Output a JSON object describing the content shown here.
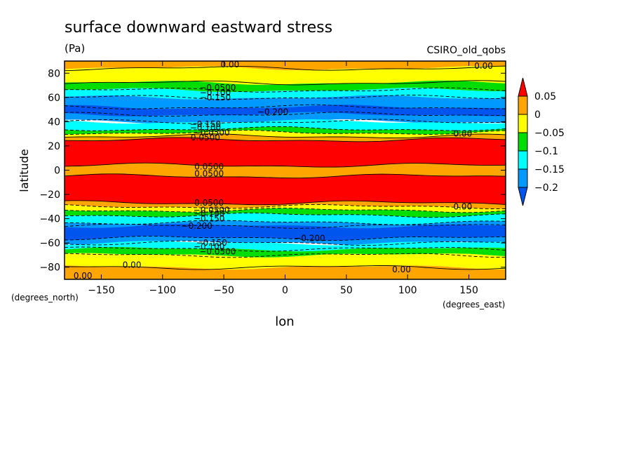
{
  "chart_data": {
    "type": "heatmap",
    "title": "surface downward eastward stress",
    "units": "(Pa)",
    "dataset": "CSIRO_old_qobs",
    "xlabel": "lon",
    "ylabel": "latitude",
    "x_units": "(degrees_east)",
    "y_units": "(degrees_north)",
    "xlim": [
      -180,
      180
    ],
    "ylim": [
      -90,
      90
    ],
    "x_ticks": [
      -150,
      -100,
      -50,
      0,
      50,
      100,
      150
    ],
    "y_ticks": [
      -80,
      -60,
      -40,
      -20,
      0,
      20,
      40,
      60,
      80
    ],
    "colorbar": {
      "levels": [
        -0.2,
        -0.15,
        -0.1,
        -0.05,
        0,
        0.05
      ],
      "tick_labels": [
        "0.05",
        "0",
        "−0.05",
        "−0.1",
        "−0.15",
        "−0.2"
      ],
      "colors": {
        "above_0.05": "#ff0000",
        "0_to_0.05": "#ffa500",
        "-0.05_to_0": "#ffff00",
        "-0.1_to_-0.05": "#00dd00",
        "-0.15_to_-0.1": "#00ffff",
        "-0.2_to_-0.15": "#0099ff",
        "below_-0.2": "#0055ee"
      }
    },
    "zonal_bands": [
      {
        "lat_range": [
          84,
          90
        ],
        "level": "0_to_0.05"
      },
      {
        "lat_range": [
          72,
          84
        ],
        "level": "-0.05_to_0"
      },
      {
        "lat_range": [
          66,
          72
        ],
        "level": "-0.1_to_-0.05"
      },
      {
        "lat_range": [
          60,
          66
        ],
        "level": "-0.15_to_-0.1"
      },
      {
        "lat_range": [
          40,
          60
        ],
        "level": "-0.2_to_-0.15"
      },
      {
        "lat_range": [
          46,
          52
        ],
        "level": "below_-0.2"
      },
      {
        "lat_range": [
          34,
          40
        ],
        "level": "-0.15_to_-0.1"
      },
      {
        "lat_range": [
          31,
          34
        ],
        "level": "-0.1_to_-0.05"
      },
      {
        "lat_range": [
          28,
          31
        ],
        "level": "-0.05_to_0"
      },
      {
        "lat_range": [
          25,
          28
        ],
        "level": "0_to_0.05"
      },
      {
        "lat_range": [
          4,
          25
        ],
        "level": "above_0.05"
      },
      {
        "lat_range": [
          -5,
          4
        ],
        "level": "0_to_0.05"
      },
      {
        "lat_range": [
          -27,
          -5
        ],
        "level": "above_0.05"
      },
      {
        "lat_range": [
          -30,
          -27
        ],
        "level": "0_to_0.05"
      },
      {
        "lat_range": [
          -33,
          -30
        ],
        "level": "-0.05_to_0"
      },
      {
        "lat_range": [
          -37,
          -33
        ],
        "level": "-0.1_to_-0.05"
      },
      {
        "lat_range": [
          -43,
          -37
        ],
        "level": "-0.15_to_-0.1"
      },
      {
        "lat_range": [
          -60,
          -43
        ],
        "level": "-0.2_to_-0.15"
      },
      {
        "lat_range": [
          -56,
          -46
        ],
        "level": "below_-0.2"
      },
      {
        "lat_range": [
          -65,
          -60
        ],
        "level": "-0.15_to_-0.1"
      },
      {
        "lat_range": [
          -70,
          -65
        ],
        "level": "-0.1_to_-0.05"
      },
      {
        "lat_range": [
          -80,
          -70
        ],
        "level": "-0.05_to_0"
      },
      {
        "lat_range": [
          -90,
          -80
        ],
        "level": "0_to_0.05"
      }
    ],
    "contour_labels": [
      {
        "text": "0.00",
        "lon": -45,
        "lat": 87
      },
      {
        "text": "0.00",
        "lon": 162,
        "lat": 86
      },
      {
        "text": "−0.0500",
        "lon": -55,
        "lat": 68
      },
      {
        "text": "−0.100",
        "lon": -57,
        "lat": 64
      },
      {
        "text": "−0.150",
        "lon": -57,
        "lat": 60
      },
      {
        "text": "−0.200",
        "lon": -10,
        "lat": 48
      },
      {
        "text": "−0.150",
        "lon": -65,
        "lat": 38
      },
      {
        "text": "−0.100",
        "lon": -65,
        "lat": 35
      },
      {
        "text": "−0.0500",
        "lon": -60,
        "lat": 31
      },
      {
        "text": "0.00",
        "lon": 145,
        "lat": 30
      },
      {
        "text": "0.0500",
        "lon": -65,
        "lat": 27
      },
      {
        "text": "0.0500",
        "lon": -62,
        "lat": 3
      },
      {
        "text": "0.0500",
        "lon": -62,
        "lat": -3
      },
      {
        "text": "0.0500",
        "lon": -62,
        "lat": -27
      },
      {
        "text": "0.00",
        "lon": 145,
        "lat": -30
      },
      {
        "text": "−0.0500",
        "lon": -60,
        "lat": -33
      },
      {
        "text": "−0.100",
        "lon": -62,
        "lat": -36
      },
      {
        "text": "−0.150",
        "lon": -62,
        "lat": -40
      },
      {
        "text": "−0.200",
        "lon": -72,
        "lat": -46
      },
      {
        "text": "−0.200",
        "lon": 20,
        "lat": -56
      },
      {
        "text": "−0.150",
        "lon": -60,
        "lat": -60
      },
      {
        "text": "−0.100",
        "lon": -62,
        "lat": -63
      },
      {
        "text": "−0.0500",
        "lon": -55,
        "lat": -67
      },
      {
        "text": "0.00",
        "lon": -125,
        "lat": -78
      },
      {
        "text": "0.00",
        "lon": -165,
        "lat": -87
      },
      {
        "text": "0.00",
        "lon": 95,
        "lat": -82
      }
    ]
  }
}
